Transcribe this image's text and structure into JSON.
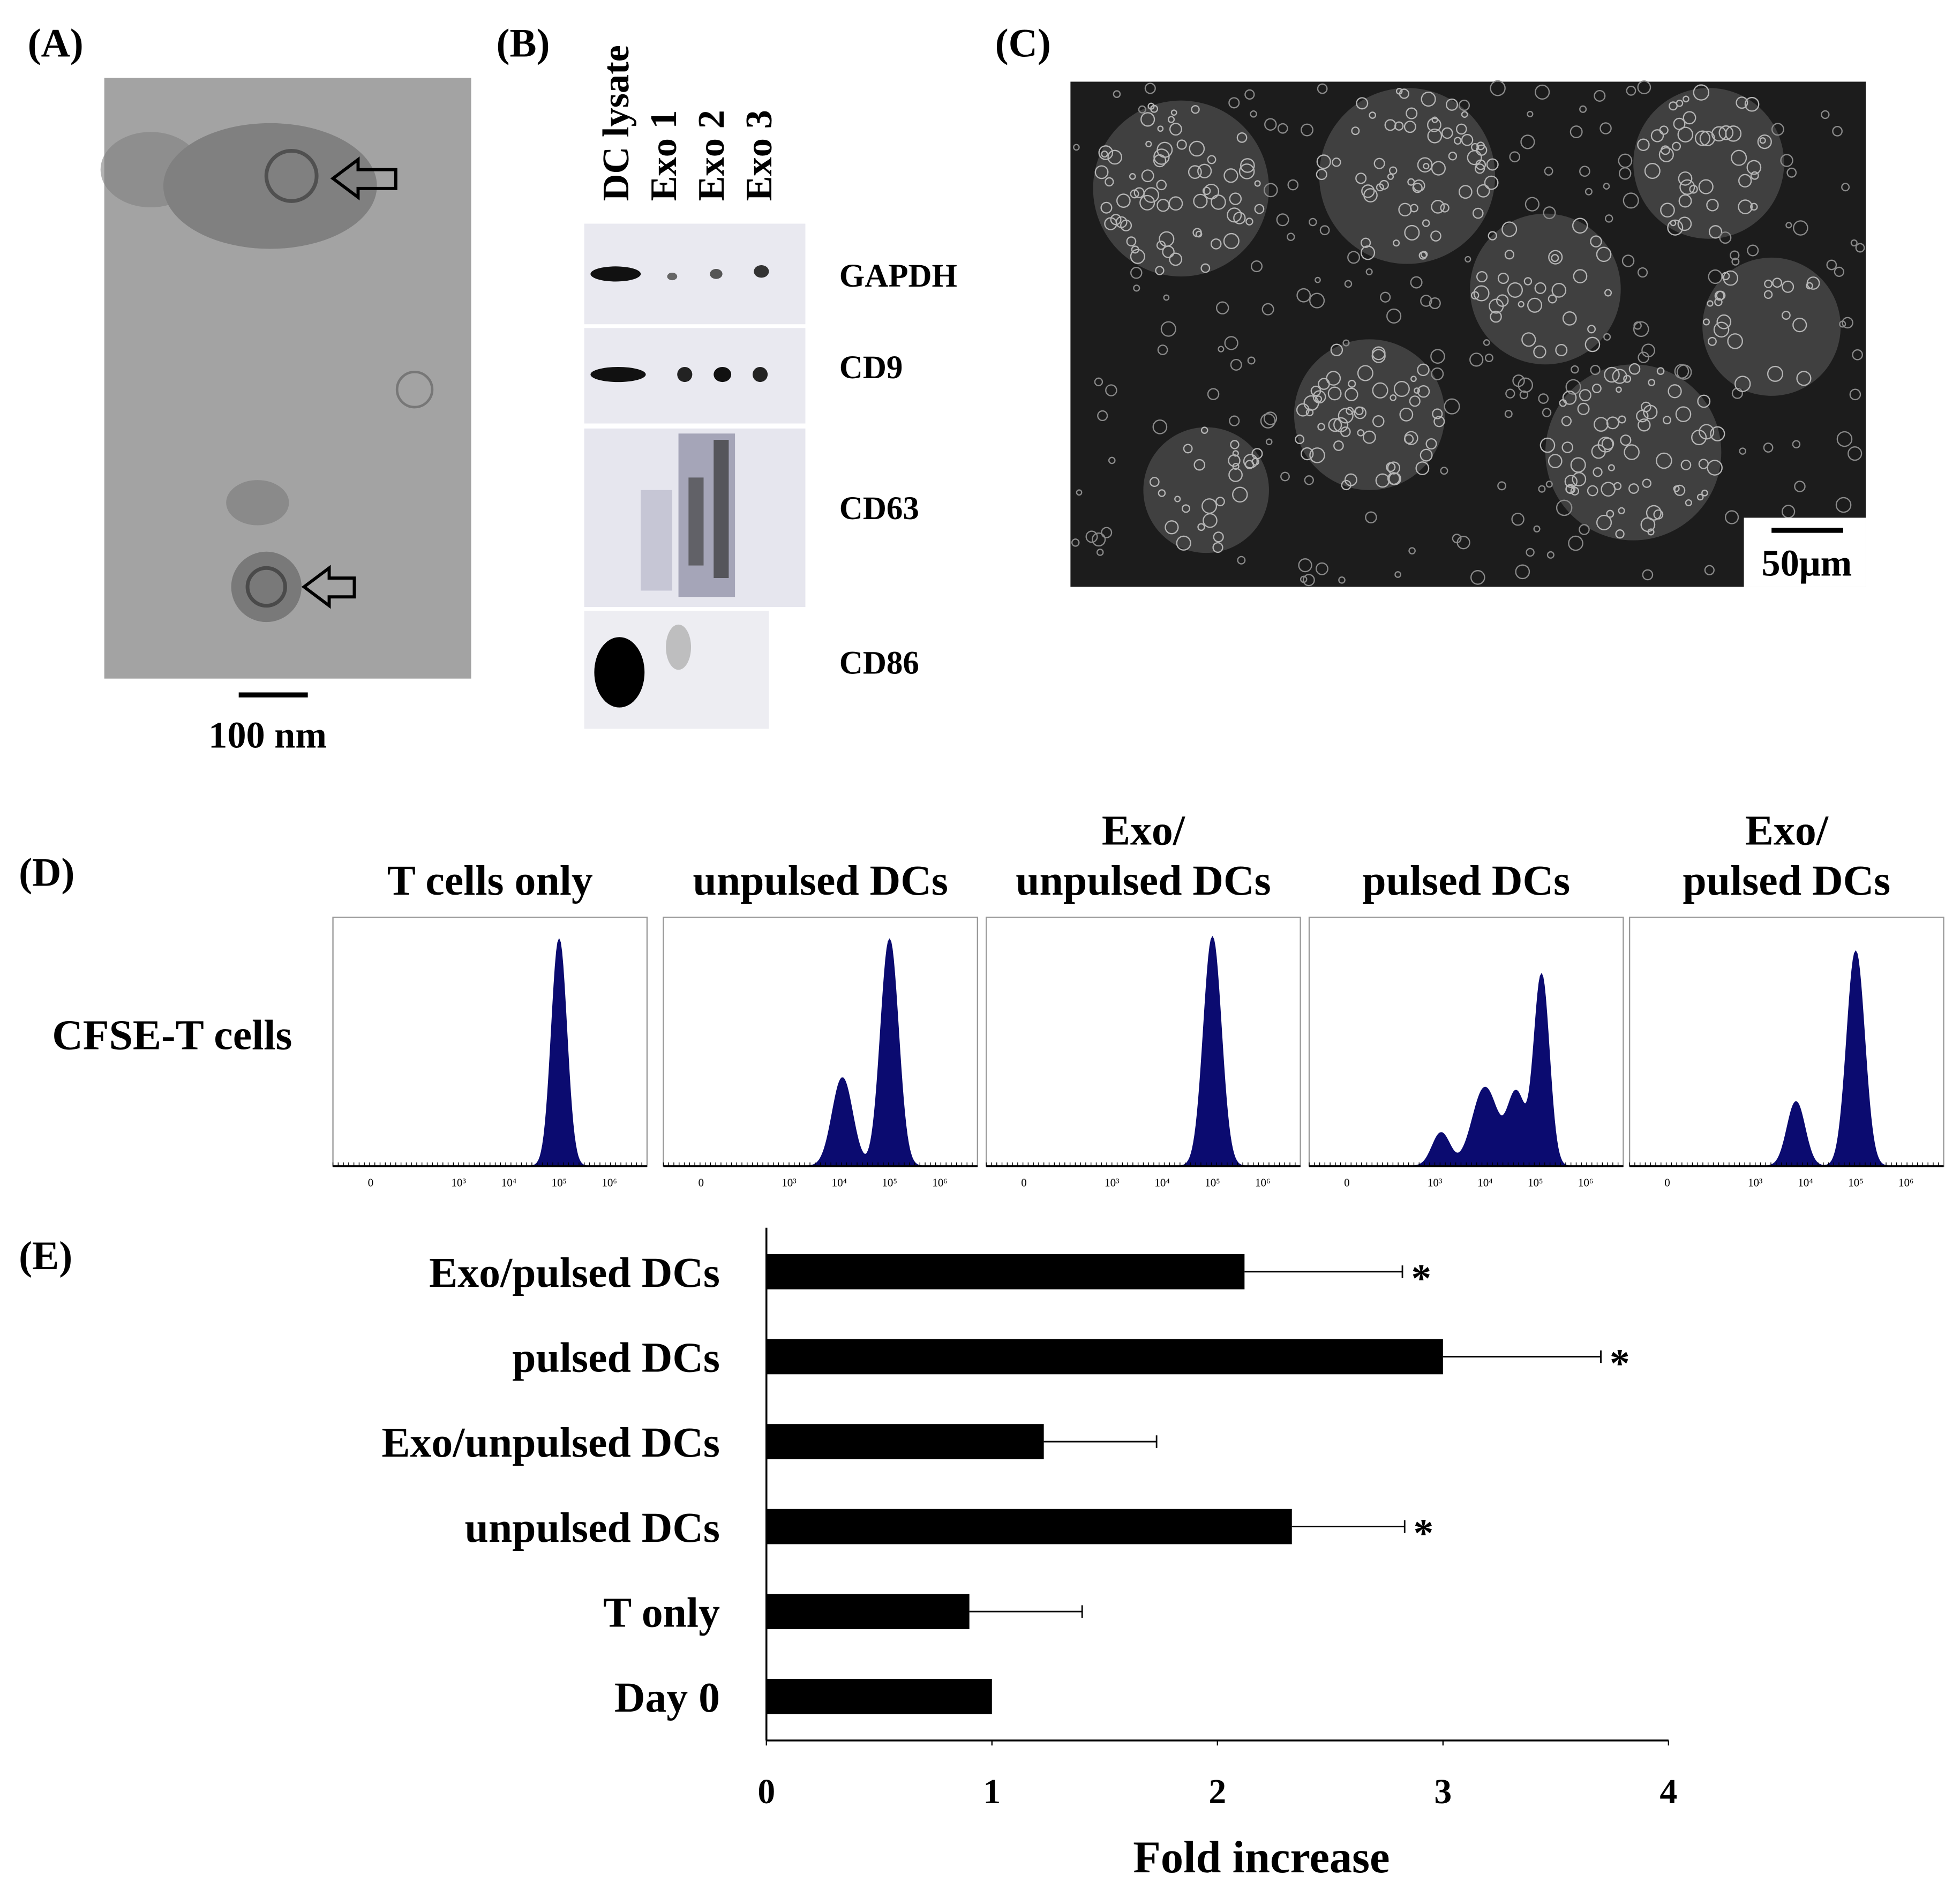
{
  "panels": {
    "a": {
      "label": "(A)",
      "scale_bar": "100 nm"
    },
    "b": {
      "label": "(B)",
      "lanes": [
        "DC lysate",
        "Exo 1",
        "Exo 2",
        "Exo 3"
      ],
      "markers": [
        "GAPDH",
        "CD9",
        "CD63",
        "CD86"
      ]
    },
    "c": {
      "label": "(C)",
      "scale_bar": "50μm"
    },
    "d": {
      "label": "(D)",
      "row_label": "CFSE-T cells",
      "conditions": [
        [
          "T cells only"
        ],
        [
          "unpulsed DCs"
        ],
        [
          "Exo/",
          "unpulsed DCs"
        ],
        [
          "pulsed DCs"
        ],
        [
          "Exo/",
          "pulsed DCs"
        ]
      ],
      "axis_labels": [
        "0",
        "10³",
        "10⁴",
        "10⁵",
        "10⁶"
      ]
    },
    "e": {
      "label": "(E)"
    }
  },
  "chart_data": {
    "type": "bar",
    "orientation": "horizontal",
    "categories": [
      "Exo/pulsed DCs",
      "pulsed DCs",
      "Exo/unpulsed DCs",
      "unpulsed DCs",
      "T only",
      "Day 0"
    ],
    "values": [
      2.12,
      3.0,
      1.23,
      2.33,
      0.9,
      1.0
    ],
    "errors": [
      0.7,
      0.7,
      0.5,
      0.5,
      0.5,
      null
    ],
    "annotations": [
      "*",
      "*",
      null,
      "*",
      null,
      null
    ],
    "xlim": [
      0,
      4
    ],
    "xticks": [
      0,
      1,
      2,
      3,
      4
    ],
    "xlabel": "Fold increase",
    "color": "#000000"
  }
}
